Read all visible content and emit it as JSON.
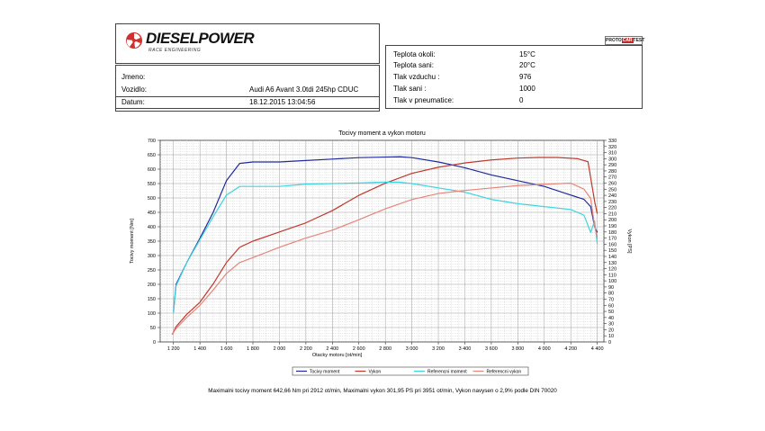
{
  "header": {
    "logo_text": "DIESELPOWER",
    "logo_subtext": "RACE ENGINEERING",
    "badge_left": "PROTO",
    "badge_mid": "CAR",
    "badge_right": "TEST"
  },
  "vehicle": {
    "jmeno_label": "Jmeno:",
    "jmeno_value": "",
    "vozidlo_label": "Vozidlo:",
    "vozidlo_value": "Audi A6 Avant 3.0tdi 245hp CDUC",
    "datum_label": "Datum:",
    "datum_value": "18.12.2015 13:04:56"
  },
  "conditions": [
    {
      "label": "Teplota okoli:",
      "value": "15°C"
    },
    {
      "label": "Teplota sani:",
      "value": "20°C"
    },
    {
      "label": "Tlak vzduchu :",
      "value": "976"
    },
    {
      "label": "Tlak sani :",
      "value": "1000"
    },
    {
      "label": "Tlak v pneumatice:",
      "value": "0"
    }
  ],
  "footer": {
    "note": "Maximalni tocivy moment 642,66 Nm pri 2912 ot/min,  Maximalni vykon 301,95 PS pri 3951 ot/min,  Vykon navysen o 2,9% podle DIN 70020"
  },
  "chart_data": {
    "type": "line",
    "title": "Tocivy moment a vykon motoru",
    "xlabel": "Otacky motoru [ot/min]",
    "ylabel": "Tocivy moment [Nm]",
    "y2label": "Vykon [PS]",
    "xlim": [
      1100,
      4450
    ],
    "ylim": [
      0,
      700
    ],
    "y2lim": [
      0,
      330
    ],
    "xticks": [
      1200,
      1400,
      1600,
      1800,
      2000,
      2200,
      2400,
      2600,
      2800,
      3000,
      3200,
      3400,
      3600,
      3800,
      4000,
      4200,
      4400
    ],
    "xtick_labels": [
      "1 200",
      "1 400",
      "1 600",
      "1 800",
      "2 000",
      "2 200",
      "2 400",
      "2 600",
      "2 800",
      "3 000",
      "3 200",
      "3 400",
      "3 600",
      "3 800",
      "4 000",
      "4 200",
      "4 400"
    ],
    "yticks": [
      0,
      50,
      100,
      150,
      200,
      250,
      300,
      350,
      400,
      450,
      500,
      550,
      600,
      650,
      700
    ],
    "y2ticks": [
      0,
      10,
      20,
      30,
      40,
      50,
      60,
      70,
      80,
      90,
      100,
      110,
      120,
      130,
      140,
      150,
      160,
      170,
      180,
      190,
      200,
      210,
      220,
      230,
      240,
      250,
      260,
      270,
      280,
      290,
      300,
      310,
      320,
      330
    ],
    "grid": true,
    "legend_position": "bottom",
    "series": [
      {
        "name": "Tocivy moment",
        "axis": "left",
        "color": "#1f2a9c",
        "points": [
          [
            1200,
            105
          ],
          [
            1220,
            200
          ],
          [
            1300,
            275
          ],
          [
            1400,
            360
          ],
          [
            1500,
            450
          ],
          [
            1600,
            560
          ],
          [
            1700,
            620
          ],
          [
            1800,
            625
          ],
          [
            2000,
            625
          ],
          [
            2200,
            630
          ],
          [
            2400,
            635
          ],
          [
            2600,
            640
          ],
          [
            2800,
            642
          ],
          [
            2912,
            643
          ],
          [
            3000,
            640
          ],
          [
            3200,
            625
          ],
          [
            3400,
            605
          ],
          [
            3600,
            580
          ],
          [
            3800,
            560
          ],
          [
            4000,
            540
          ],
          [
            4200,
            510
          ],
          [
            4300,
            495
          ],
          [
            4350,
            470
          ],
          [
            4380,
            400
          ],
          [
            4400,
            380
          ]
        ]
      },
      {
        "name": "Vykon",
        "axis": "right",
        "color": "#c0392b",
        "points": [
          [
            1190,
            12
          ],
          [
            1220,
            25
          ],
          [
            1300,
            45
          ],
          [
            1400,
            65
          ],
          [
            1500,
            95
          ],
          [
            1600,
            130
          ],
          [
            1700,
            155
          ],
          [
            1800,
            165
          ],
          [
            2000,
            180
          ],
          [
            2200,
            195
          ],
          [
            2400,
            215
          ],
          [
            2600,
            240
          ],
          [
            2800,
            260
          ],
          [
            3000,
            276
          ],
          [
            3200,
            286
          ],
          [
            3400,
            293
          ],
          [
            3600,
            298
          ],
          [
            3800,
            301
          ],
          [
            3951,
            302
          ],
          [
            4100,
            302
          ],
          [
            4250,
            300
          ],
          [
            4330,
            295
          ],
          [
            4380,
            230
          ],
          [
            4400,
            210
          ]
        ]
      },
      {
        "name": "Referencni moment",
        "axis": "left",
        "color": "#3ed4e0",
        "points": [
          [
            1200,
            100
          ],
          [
            1220,
            195
          ],
          [
            1300,
            275
          ],
          [
            1400,
            355
          ],
          [
            1500,
            435
          ],
          [
            1600,
            510
          ],
          [
            1700,
            540
          ],
          [
            1800,
            540
          ],
          [
            2000,
            540
          ],
          [
            2200,
            548
          ],
          [
            2400,
            550
          ],
          [
            2600,
            552
          ],
          [
            2800,
            555
          ],
          [
            2900,
            555
          ],
          [
            3000,
            550
          ],
          [
            3200,
            535
          ],
          [
            3400,
            520
          ],
          [
            3600,
            495
          ],
          [
            3800,
            480
          ],
          [
            4000,
            470
          ],
          [
            4200,
            460
          ],
          [
            4300,
            440
          ],
          [
            4350,
            380
          ],
          [
            4380,
            420
          ],
          [
            4400,
            340
          ]
        ]
      },
      {
        "name": "Referencni vykon",
        "axis": "right",
        "color": "#e8847a",
        "points": [
          [
            1190,
            12
          ],
          [
            1220,
            22
          ],
          [
            1300,
            40
          ],
          [
            1400,
            60
          ],
          [
            1500,
            85
          ],
          [
            1600,
            112
          ],
          [
            1700,
            130
          ],
          [
            1800,
            138
          ],
          [
            2000,
            155
          ],
          [
            2200,
            170
          ],
          [
            2400,
            183
          ],
          [
            2600,
            200
          ],
          [
            2800,
            218
          ],
          [
            3000,
            233
          ],
          [
            3200,
            243
          ],
          [
            3400,
            248
          ],
          [
            3600,
            252
          ],
          [
            3800,
            256
          ],
          [
            4000,
            258
          ],
          [
            4200,
            260
          ],
          [
            4300,
            250
          ],
          [
            4350,
            235
          ],
          [
            4380,
            190
          ],
          [
            4400,
            170
          ]
        ]
      }
    ]
  }
}
